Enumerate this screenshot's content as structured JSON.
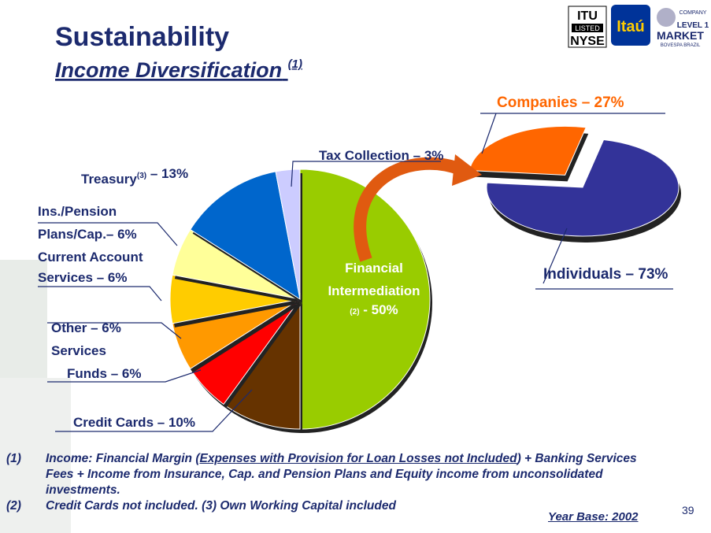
{
  "header": {
    "title": "Sustainability",
    "subtitle": "Income Diversification",
    "subtitle_note": "(1)",
    "logos": [
      "ITU",
      "LISTED",
      "NYSE",
      "Itaú",
      "COMPANY",
      "LEVEL 1",
      "MARKET",
      "BOVESPA BRAZIL"
    ]
  },
  "chart_data": [
    {
      "type": "pie",
      "categories": [
        [
          "Financial",
          "Intermediation"
        ],
        [
          "Credit Cards"
        ],
        [
          "Funds"
        ],
        [
          "Other",
          "Services"
        ],
        [
          "Current Account",
          "Services"
        ],
        [
          "Ins./Pension",
          "Plans/Cap."
        ],
        [
          "Treasury"
        ],
        [
          "Tax Collection"
        ]
      ],
      "category_marks": [
        "(2)",
        null,
        null,
        null,
        null,
        null,
        "(3)",
        null
      ],
      "values": [
        50,
        10,
        6,
        6,
        6,
        6,
        13,
        3
      ],
      "value_labels": [
        "- 50%",
        "– 10%",
        "– 6%",
        "– 6%",
        "– 6%",
        "– 6%",
        "– 13%",
        "– 3%"
      ],
      "colors": [
        "#99cc00",
        "#663300",
        "#ff0000",
        "#ff9900",
        "#ffcc00",
        "#ffff99",
        "#0066cc",
        "#ccccff"
      ]
    },
    {
      "type": "pie",
      "categories": [
        [
          "Companies"
        ],
        [
          "Individuals"
        ]
      ],
      "values": [
        27,
        73
      ],
      "value_labels": [
        "– 27%",
        "– 73%"
      ],
      "colors": [
        "#ff6600",
        "#333399"
      ]
    }
  ],
  "footnotes": [
    {
      "marker": "(1)",
      "parts": [
        "Income: Financial Margin (",
        "Expenses with Provision for Loan Losses not Included",
        ")  + Banking Services Fees + Income from Insurance, Cap. and Pension Plans and Equity income from unconsolidated investments."
      ]
    },
    {
      "marker": "(2)",
      "parts": [
        "Credit Cards not included. (3) Own Working Capital included"
      ]
    }
  ],
  "year_base": "Year Base: 2002",
  "page_number": "39"
}
